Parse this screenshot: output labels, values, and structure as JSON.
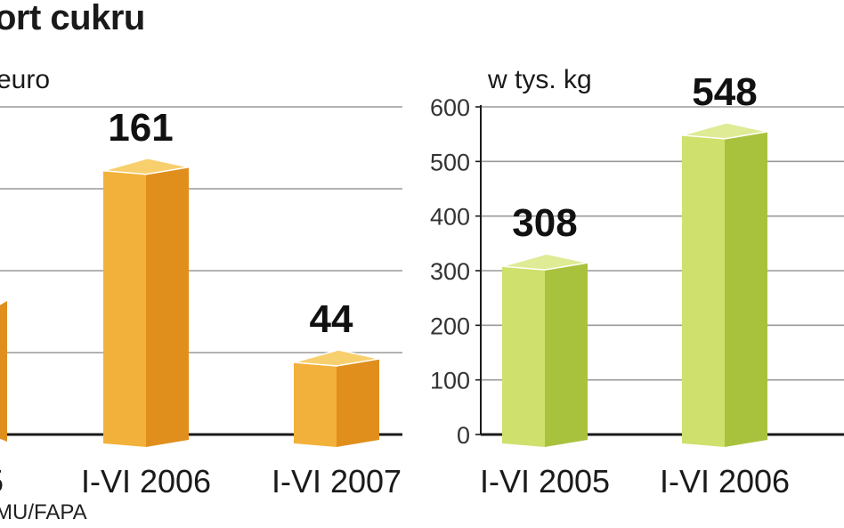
{
  "header": {
    "title": "ort cukru",
    "source": "MU/FAPA"
  },
  "colors": {
    "left_face": "#f2b13a",
    "left_side": "#e08f1d",
    "left_top": "#f8cf6d",
    "right_face": "#cfe06c",
    "right_side": "#a9c23d",
    "right_top": "#dfeb95",
    "grid": "#9a9a9a",
    "axis": "#1a1a1a"
  },
  "chart_data": [
    {
      "type": "bar",
      "title": "",
      "ylabel": "euro",
      "xlabel": "",
      "ylim": [
        0,
        200
      ],
      "yticks": [
        0,
        50,
        100,
        150,
        200
      ],
      "show_tick_labels": false,
      "grid": true,
      "categories": [
        "5",
        "I-VI 2006",
        "I-VI 2007"
      ],
      "series": [
        {
          "values": [
            null,
            161,
            44
          ],
          "labels": [
            "",
            "161",
            "44"
          ]
        }
      ],
      "partial_bar_note": "first bar partially visible at left edge"
    },
    {
      "type": "bar",
      "title": "",
      "ylabel": "w tys. kg",
      "xlabel": "",
      "ylim": [
        0,
        600
      ],
      "yticks": [
        0,
        100,
        200,
        300,
        400,
        500,
        600
      ],
      "tick_labels": [
        "0",
        "100",
        "200",
        "300",
        "400",
        "500",
        "600"
      ],
      "grid": true,
      "categories": [
        "I-VI 2005",
        "I-VI 2006"
      ],
      "series": [
        {
          "values": [
            308,
            548
          ],
          "labels": [
            "308",
            "548"
          ]
        }
      ]
    }
  ]
}
